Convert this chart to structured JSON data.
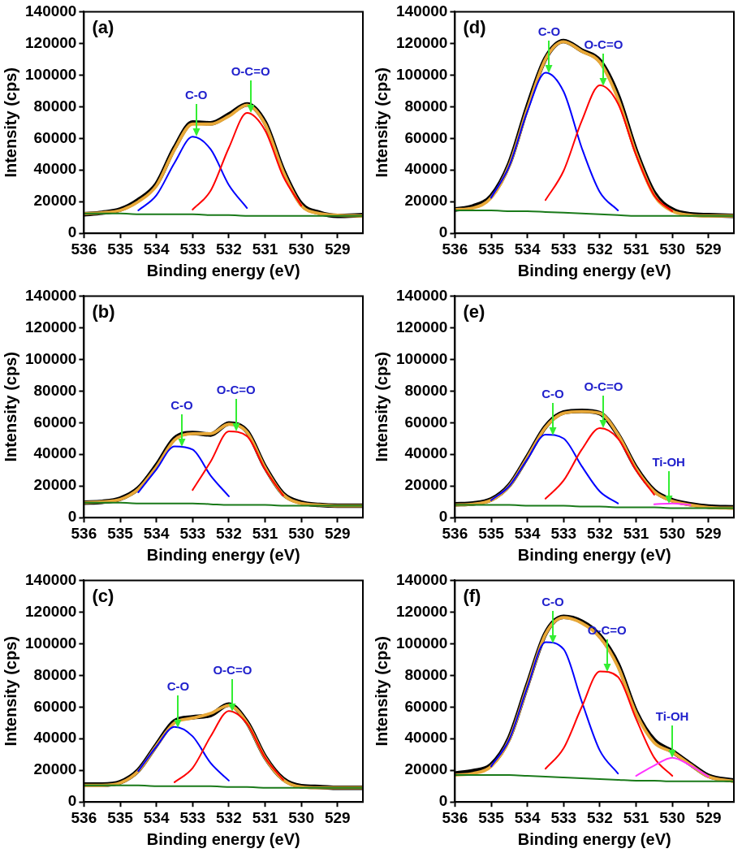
{
  "chart_data": [
    {
      "type": "line",
      "title": "(a)",
      "xlabel": "Binding energy (eV)",
      "ylabel": "Intensity (cps)",
      "xlim": [
        536,
        528.3
      ],
      "ylim": [
        0,
        140000
      ],
      "xticks": [
        536,
        535,
        534,
        533,
        532,
        531,
        530,
        529
      ],
      "yticks": [
        0,
        20000,
        40000,
        60000,
        80000,
        100000,
        120000,
        140000
      ],
      "x": [
        536,
        535.5,
        535,
        534.5,
        534,
        533.5,
        533,
        532.5,
        532,
        531.5,
        531,
        530.5,
        530,
        529.5,
        529,
        528.3
      ],
      "series": [
        {
          "color": "#000000",
          "values": [
            12000,
            13000,
            15000,
            21000,
            31000,
            54000,
            70000,
            69500,
            75000,
            81500,
            70000,
            40000,
            18500,
            13000,
            11000,
            11500
          ]
        },
        {
          "color": "#e8a838",
          "values": [
            12500,
            13000,
            14500,
            20000,
            30000,
            53000,
            69000,
            69000,
            74000,
            81000,
            69000,
            39000,
            17500,
            12500,
            11500,
            11000
          ]
        },
        {
          "color": "#1a7a1a",
          "values": [
            12500,
            12500,
            12500,
            12000,
            12000,
            12000,
            12000,
            11500,
            11500,
            11000,
            11000,
            11000,
            11000,
            11000,
            11000,
            11000
          ]
        },
        {
          "color": "#0000ff",
          "values": [
            null,
            null,
            null,
            14500,
            24000,
            44500,
            61000,
            53000,
            30500,
            16000,
            null,
            null,
            null,
            null,
            null,
            null
          ]
        },
        {
          "color": "#ff0000",
          "values": [
            null,
            null,
            null,
            null,
            null,
            null,
            15000,
            27000,
            54000,
            76000,
            65000,
            36000,
            17500,
            null,
            null,
            null
          ]
        }
      ],
      "annotations": [
        {
          "text": "C-O",
          "x": 532.9,
          "y": 61000
        },
        {
          "text": "O-C=O",
          "x": 531.4,
          "y": 76000
        }
      ]
    },
    {
      "type": "line",
      "title": "(d)",
      "xlabel": "Binding energy (eV)",
      "ylabel": "Intensity (cps)",
      "xlim": [
        536,
        528.3
      ],
      "ylim": [
        0,
        140000
      ],
      "xticks": [
        536,
        535,
        534,
        533,
        532,
        531,
        530,
        529
      ],
      "yticks": [
        0,
        20000,
        40000,
        60000,
        80000,
        100000,
        120000,
        140000
      ],
      "x": [
        536,
        535.5,
        535,
        534.5,
        534,
        533.5,
        533,
        532.5,
        532,
        531.5,
        531,
        530.5,
        530,
        529.5,
        529,
        528.3
      ],
      "series": [
        {
          "color": "#000000",
          "values": [
            15000,
            17000,
            23500,
            44000,
            80000,
            110500,
            121500,
            115500,
            109000,
            87000,
            52000,
            25500,
            15000,
            12000,
            11500,
            11000
          ]
        },
        {
          "color": "#e8a838",
          "values": [
            15000,
            16000,
            22500,
            43000,
            78500,
            110000,
            121000,
            115000,
            108000,
            85000,
            50500,
            24000,
            14000,
            11500,
            11000,
            11000
          ]
        },
        {
          "color": "#1a7a1a",
          "values": [
            14500,
            14500,
            14500,
            14000,
            14000,
            13500,
            13000,
            12500,
            12000,
            11500,
            11000,
            11000,
            11000,
            11000,
            11000,
            11000
          ]
        },
        {
          "color": "#0000ff",
          "values": [
            null,
            null,
            22500,
            42500,
            77000,
            101500,
            89500,
            54000,
            26000,
            14500,
            null,
            null,
            null,
            null,
            null,
            null
          ]
        },
        {
          "color": "#ff0000",
          "values": [
            null,
            null,
            null,
            null,
            null,
            21000,
            39500,
            71000,
            93500,
            82000,
            49500,
            24000,
            14000,
            null,
            null,
            null
          ]
        }
      ],
      "annotations": [
        {
          "text": "C-O",
          "x": 533.4,
          "y": 101000
        },
        {
          "text": "O-C=O",
          "x": 531.9,
          "y": 93000
        }
      ]
    },
    {
      "type": "line",
      "title": "(b)",
      "xlabel": "Binding energy (eV)",
      "ylabel": "Intensity (cps)",
      "xlim": [
        536,
        528.3
      ],
      "ylim": [
        0,
        140000
      ],
      "xticks": [
        536,
        535,
        534,
        533,
        532,
        531,
        530,
        529
      ],
      "yticks": [
        0,
        20000,
        40000,
        60000,
        80000,
        100000,
        120000,
        140000
      ],
      "x": [
        536,
        535.5,
        535,
        534.5,
        534,
        533.5,
        533,
        532.5,
        532,
        531.5,
        531,
        530.5,
        530,
        529.5,
        529,
        528.3
      ],
      "series": [
        {
          "color": "#000000",
          "values": [
            9500,
            10000,
            12000,
            18500,
            33000,
            50000,
            53500,
            52500,
            59500,
            54500,
            32000,
            15000,
            9500,
            8000,
            7500,
            7500
          ]
        },
        {
          "color": "#e8a838",
          "values": [
            9500,
            10000,
            11500,
            18000,
            32000,
            49000,
            53000,
            53000,
            59000,
            54000,
            31500,
            14500,
            9000,
            8000,
            7500,
            7500
          ]
        },
        {
          "color": "#1a7a1a",
          "values": [
            9500,
            9500,
            9500,
            9000,
            9000,
            9000,
            9000,
            8500,
            8000,
            8000,
            8000,
            7500,
            7500,
            7500,
            7500,
            7500
          ]
        },
        {
          "color": "#0000ff",
          "values": [
            null,
            null,
            null,
            16000,
            30500,
            45000,
            43000,
            26500,
            13500,
            null,
            null,
            null,
            null,
            null,
            null,
            null
          ]
        },
        {
          "color": "#ff0000",
          "values": [
            null,
            null,
            null,
            null,
            null,
            null,
            17500,
            35500,
            54500,
            51500,
            30500,
            14000,
            null,
            null,
            null,
            null
          ]
        }
      ],
      "annotations": [
        {
          "text": "C-O",
          "x": 533.3,
          "y": 45000
        },
        {
          "text": "O-C=O",
          "x": 531.8,
          "y": 54500
        }
      ]
    },
    {
      "type": "line",
      "title": "(e)",
      "xlabel": "Binding energy (eV)",
      "ylabel": "Intensity (cps)",
      "xlim": [
        536,
        528.3
      ],
      "ylim": [
        0,
        140000
      ],
      "xticks": [
        536,
        535,
        534,
        533,
        532,
        531,
        530,
        529
      ],
      "yticks": [
        0,
        20000,
        40000,
        60000,
        80000,
        100000,
        120000,
        140000
      ],
      "x": [
        536,
        535.5,
        535,
        534.5,
        534,
        533.5,
        533,
        532.5,
        532,
        531.5,
        531,
        530.5,
        530,
        529.5,
        529,
        528.3
      ],
      "series": [
        {
          "color": "#000000",
          "values": [
            8500,
            9000,
            11500,
            20500,
            38500,
            57500,
            66500,
            67500,
            66000,
            52500,
            31500,
            17000,
            11000,
            8500,
            7000,
            6500
          ]
        },
        {
          "color": "#e8a838",
          "values": [
            8000,
            8500,
            11000,
            20000,
            38000,
            57000,
            66000,
            67000,
            66000,
            52500,
            31000,
            16500,
            10500,
            8000,
            6500,
            6000
          ]
        },
        {
          "color": "#1a7a1a",
          "values": [
            8000,
            8000,
            8000,
            8000,
            7500,
            7500,
            7500,
            7000,
            7000,
            6500,
            6500,
            6500,
            6000,
            6000,
            6000,
            6000
          ]
        },
        {
          "color": "#0000ff",
          "values": [
            null,
            null,
            11000,
            20000,
            37000,
            52500,
            50000,
            32500,
            16500,
            9000,
            null,
            null,
            null,
            null,
            null,
            null
          ]
        },
        {
          "color": "#ff0000",
          "values": [
            null,
            null,
            null,
            null,
            null,
            12000,
            23500,
            43000,
            56500,
            50000,
            30000,
            14500,
            null,
            null,
            null,
            null
          ]
        },
        {
          "color": "#ff33ff",
          "values": [
            null,
            null,
            null,
            null,
            null,
            null,
            null,
            null,
            null,
            null,
            null,
            8500,
            9000,
            8000,
            null,
            null
          ]
        }
      ],
      "annotations": [
        {
          "text": "C-O",
          "x": 533.3,
          "y": 52000
        },
        {
          "text": "O-C=O",
          "x": 531.9,
          "y": 56500
        },
        {
          "text": "Ti-OH",
          "x": 530.1,
          "y": 9000
        }
      ]
    },
    {
      "type": "line",
      "title": "(c)",
      "xlabel": "Binding energy (eV)",
      "ylabel": "Intensity (cps)",
      "xlim": [
        536,
        528.3
      ],
      "ylim": [
        0,
        140000
      ],
      "xticks": [
        536,
        535,
        534,
        533,
        532,
        531,
        530,
        529
      ],
      "yticks": [
        0,
        20000,
        40000,
        60000,
        80000,
        100000,
        120000,
        140000
      ],
      "x": [
        536,
        535.5,
        535,
        534.5,
        534,
        533.5,
        533,
        532.5,
        532,
        531.5,
        531,
        530.5,
        530,
        529.5,
        529,
        528.3
      ],
      "series": [
        {
          "color": "#000000",
          "values": [
            11000,
            11000,
            12500,
            20000,
            36000,
            51000,
            53500,
            55000,
            61500,
            50500,
            28500,
            14500,
            10000,
            9500,
            9000,
            9000
          ]
        },
        {
          "color": "#e8a838",
          "values": [
            10500,
            10500,
            12000,
            19500,
            35500,
            50000,
            53000,
            56000,
            61000,
            50000,
            28000,
            14000,
            9500,
            9000,
            9000,
            9000
          ]
        },
        {
          "color": "#1a7a1a",
          "values": [
            10500,
            10500,
            10500,
            10500,
            10000,
            10000,
            10000,
            10000,
            9500,
            9500,
            9000,
            9000,
            9000,
            9000,
            9000,
            9000
          ]
        },
        {
          "color": "#0000ff",
          "values": [
            null,
            null,
            null,
            19500,
            35000,
            47500,
            41500,
            24500,
            13500,
            null,
            null,
            null,
            null,
            null,
            null,
            null
          ]
        },
        {
          "color": "#ff0000",
          "values": [
            null,
            null,
            null,
            null,
            null,
            12500,
            21500,
            41500,
            57500,
            49500,
            28000,
            14000,
            null,
            null,
            null,
            null
          ]
        }
      ],
      "annotations": [
        {
          "text": "C-O",
          "x": 533.4,
          "y": 47000
        },
        {
          "text": "O-C=O",
          "x": 531.9,
          "y": 57000
        }
      ]
    },
    {
      "type": "line",
      "title": "(f)",
      "xlabel": "Binding energy (eV)",
      "ylabel": "Intensity (cps)",
      "xlim": [
        536,
        528.3
      ],
      "ylim": [
        0,
        140000
      ],
      "xticks": [
        536,
        535,
        534,
        533,
        532,
        531,
        530,
        529
      ],
      "yticks": [
        0,
        20000,
        40000,
        60000,
        80000,
        100000,
        120000,
        140000
      ],
      "x": [
        536,
        535.5,
        535,
        534.5,
        534,
        533.5,
        533,
        532.5,
        532,
        531.5,
        531,
        530.5,
        530,
        529.5,
        529,
        528.3
      ],
      "series": [
        {
          "color": "#000000",
          "values": [
            18000,
            19500,
            23500,
            40500,
            74000,
            106500,
            117000,
            114000,
            105000,
            87000,
            57000,
            39000,
            32000,
            24000,
            16500,
            13500
          ]
        },
        {
          "color": "#e8a838",
          "values": [
            17000,
            18000,
            22500,
            39500,
            73000,
            106000,
            116500,
            113000,
            104000,
            85500,
            56000,
            37500,
            31500,
            23500,
            16000,
            13000
          ]
        },
        {
          "color": "#1a7a1a",
          "values": [
            17000,
            17000,
            17000,
            17000,
            16500,
            16000,
            15500,
            15000,
            14500,
            14000,
            13500,
            13500,
            13000,
            13000,
            13000,
            13000
          ]
        },
        {
          "color": "#0000ff",
          "values": [
            null,
            null,
            22500,
            39500,
            72500,
            101000,
            96500,
            63500,
            32500,
            18000,
            null,
            null,
            null,
            null,
            null,
            null
          ]
        },
        {
          "color": "#ff0000",
          "values": [
            null,
            null,
            null,
            null,
            null,
            21000,
            34000,
            60000,
            82500,
            79000,
            52500,
            28000,
            16500,
            null,
            null,
            null
          ]
        },
        {
          "color": "#ff33ff",
          "values": [
            null,
            null,
            null,
            null,
            null,
            null,
            null,
            null,
            null,
            null,
            16500,
            23000,
            28000,
            23000,
            16000,
            null
          ]
        }
      ],
      "annotations": [
        {
          "text": "C-O",
          "x": 533.3,
          "y": 100000
        },
        {
          "text": "O-C=O",
          "x": 531.8,
          "y": 82000
        },
        {
          "text": "Ti-OH",
          "x": 530.0,
          "y": 28000
        }
      ]
    }
  ]
}
